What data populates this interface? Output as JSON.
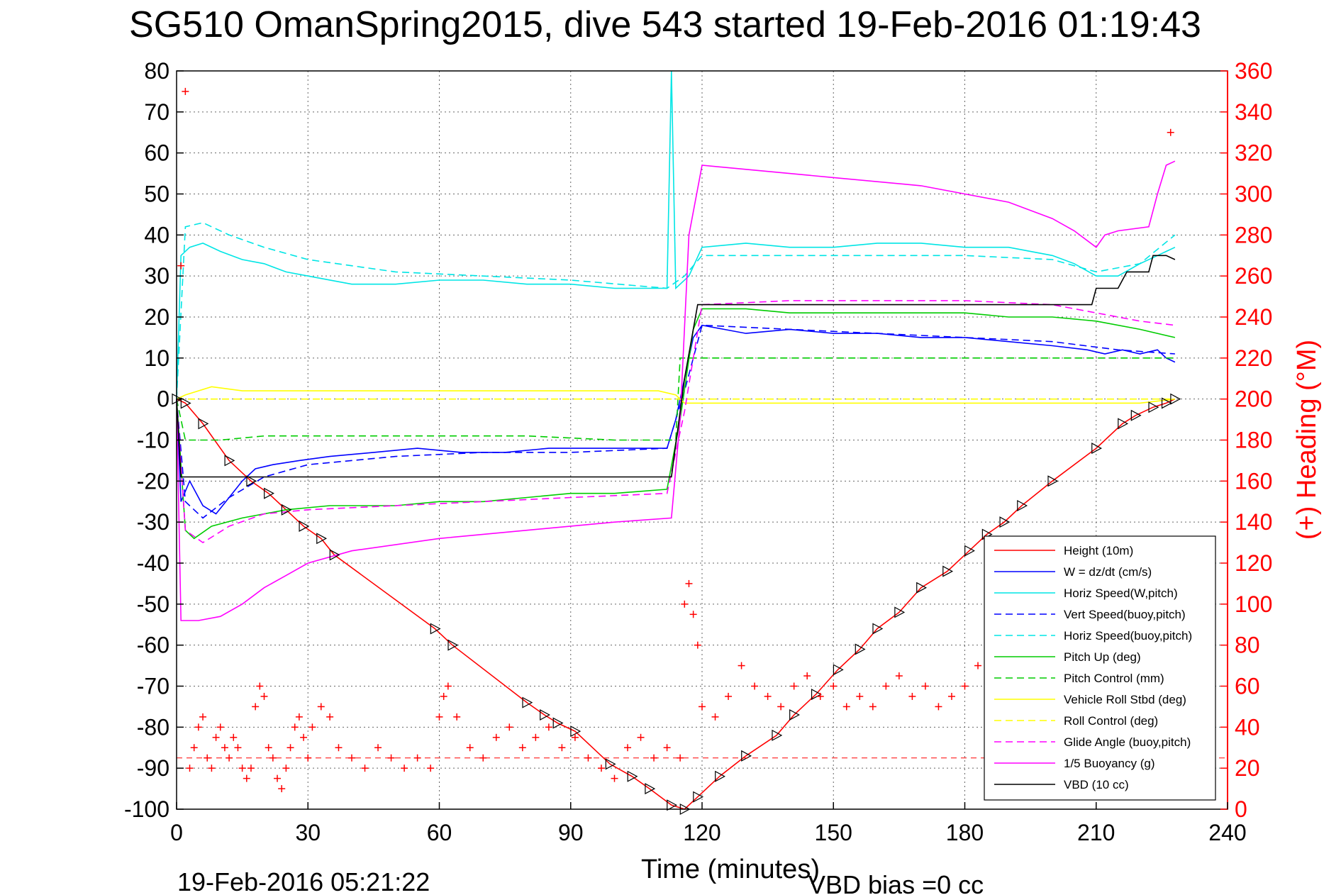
{
  "chart_data": {
    "type": "line",
    "title": "SG510 OmanSpring2015, dive 543 started 19-Feb-2016 01:19:43",
    "xlabel": "Time (minutes)",
    "ylabel_right": "(+) Heading (°M)",
    "xlim": [
      0,
      240
    ],
    "ylim": [
      -100,
      80
    ],
    "ylim_right": [
      0,
      360
    ],
    "xticks": [
      0,
      30,
      60,
      90,
      120,
      150,
      180,
      210,
      240
    ],
    "yticks": [
      -100,
      -90,
      -80,
      -70,
      -60,
      -50,
      -40,
      -30,
      -20,
      -10,
      0,
      10,
      20,
      30,
      40,
      50,
      60,
      70,
      80
    ],
    "yticks_right": [
      0,
      20,
      40,
      60,
      80,
      100,
      120,
      140,
      160,
      180,
      200,
      220,
      240,
      260,
      280,
      300,
      320,
      340,
      360
    ],
    "grid": true,
    "legend_position": "lower-right",
    "footer_left": "19-Feb-2016 05:21:22",
    "footer_right": "VBD bias =0 cc",
    "series": [
      {
        "name": "Height (10m)",
        "color": "#ff0000",
        "style": "solid",
        "x": [
          0,
          2,
          6,
          12,
          17,
          21,
          25,
          29,
          33,
          36,
          59,
          63,
          80,
          84,
          87,
          91,
          99,
          104,
          108,
          113,
          116,
          119,
          124,
          130,
          137,
          141,
          146,
          151,
          156,
          160,
          165,
          170,
          176,
          181,
          185,
          189,
          193,
          200,
          210,
          216,
          219,
          223,
          226,
          228
        ],
        "y": [
          0,
          -1,
          -6,
          -15,
          -20,
          -23,
          -27,
          -31,
          -34,
          -38,
          -56,
          -60,
          -74,
          -77,
          -79,
          -81,
          -89,
          -92,
          -95,
          -99,
          -100,
          -97,
          -92,
          -87,
          -82,
          -77,
          -72,
          -66,
          -61,
          -56,
          -52,
          -46,
          -42,
          -37,
          -33,
          -30,
          -26,
          -20,
          -12,
          -6,
          -4,
          -2,
          -1,
          0
        ]
      },
      {
        "name": "W = dz/dt (cm/s)",
        "color": "#0000ff",
        "style": "solid",
        "x": [
          0,
          1,
          3,
          6,
          9,
          12,
          15,
          18,
          22,
          28,
          35,
          45,
          55,
          65,
          75,
          85,
          95,
          105,
          112,
          114,
          116,
          118,
          120,
          125,
          130,
          140,
          150,
          160,
          170,
          180,
          190,
          200,
          208,
          212,
          216,
          220,
          224,
          226,
          228
        ],
        "y": [
          0,
          -25,
          -20,
          -26,
          -28,
          -24,
          -20,
          -17,
          -16,
          -15,
          -14,
          -13,
          -12,
          -13,
          -13,
          -12,
          -12,
          -12,
          -12,
          -5,
          5,
          15,
          18,
          17,
          16,
          17,
          16,
          16,
          15,
          15,
          14,
          13,
          12,
          11,
          12,
          11,
          12,
          10,
          9
        ]
      },
      {
        "name": "Horiz Speed(W,pitch)",
        "color": "#00e5e5",
        "style": "solid",
        "x": [
          0,
          1,
          3,
          6,
          10,
          15,
          20,
          25,
          30,
          40,
          50,
          60,
          70,
          80,
          90,
          100,
          112,
          113,
          114,
          115,
          117,
          120,
          130,
          140,
          150,
          160,
          170,
          180,
          190,
          200,
          205,
          210,
          215,
          220,
          224,
          226,
          228
        ],
        "y": [
          0,
          35,
          37,
          38,
          36,
          34,
          33,
          31,
          30,
          28,
          28,
          29,
          29,
          28,
          28,
          27,
          27,
          80,
          27,
          28,
          30,
          37,
          38,
          37,
          37,
          38,
          38,
          37,
          37,
          35,
          33,
          30,
          30,
          33,
          35,
          36,
          37
        ]
      },
      {
        "name": "Vert Speed(buoy,pitch)",
        "color": "#0000ff",
        "style": "dashed",
        "x": [
          0,
          2,
          6,
          12,
          20,
          30,
          50,
          70,
          90,
          112,
          116,
          120,
          140,
          160,
          180,
          200,
          215,
          228
        ],
        "y": [
          0,
          -25,
          -29,
          -24,
          -19,
          -16,
          -14,
          -13,
          -13,
          -12,
          2,
          18,
          17,
          16,
          15,
          14,
          12,
          11
        ]
      },
      {
        "name": "Horiz Speed(buoy,pitch)",
        "color": "#00e5e5",
        "style": "dashed",
        "x": [
          0,
          2,
          6,
          12,
          20,
          30,
          50,
          70,
          90,
          112,
          116,
          120,
          140,
          160,
          180,
          200,
          210,
          220,
          228
        ],
        "y": [
          0,
          42,
          43,
          40,
          37,
          34,
          31,
          30,
          29,
          27,
          30,
          35,
          35,
          35,
          35,
          34,
          31,
          33,
          40
        ]
      },
      {
        "name": "Pitch Up (deg)",
        "color": "#00cc00",
        "style": "solid",
        "x": [
          0,
          2,
          4,
          8,
          15,
          25,
          35,
          50,
          60,
          70,
          80,
          90,
          100,
          112,
          115,
          118,
          120,
          130,
          140,
          150,
          160,
          170,
          180,
          190,
          200,
          210,
          220,
          228
        ],
        "y": [
          0,
          -32,
          -34,
          -31,
          -29,
          -27,
          -26,
          -26,
          -25,
          -25,
          -24,
          -23,
          -23,
          -22,
          -5,
          17,
          22,
          22,
          21,
          21,
          21,
          21,
          21,
          20,
          20,
          19,
          17,
          15
        ]
      },
      {
        "name": "Pitch Control (mm)",
        "color": "#00cc00",
        "style": "dashed",
        "x": [
          0,
          2,
          10,
          20,
          40,
          60,
          80,
          100,
          114,
          115,
          120,
          140,
          160,
          180,
          200,
          215,
          228
        ],
        "y": [
          0,
          -10,
          -10,
          -9,
          -9,
          -9,
          -9,
          -10,
          -10,
          10,
          10,
          10,
          10,
          10,
          10,
          10,
          10
        ]
      },
      {
        "name": "Vehicle Roll Stbd (deg)",
        "color": "#ffff00",
        "style": "solid",
        "x": [
          0,
          2,
          8,
          15,
          30,
          50,
          70,
          90,
          110,
          114,
          116,
          120,
          140,
          160,
          180,
          200,
          220,
          228
        ],
        "y": [
          0,
          1,
          3,
          2,
          2,
          2,
          2,
          2,
          2,
          1,
          -1,
          -1,
          -1,
          -1,
          -1,
          -1,
          -1,
          0
        ]
      },
      {
        "name": "Roll Control (deg)",
        "color": "#ffff00",
        "style": "dashed",
        "x": [
          0,
          20,
          60,
          114,
          115,
          160,
          228
        ],
        "y": [
          0,
          0,
          0,
          0,
          0,
          0,
          0
        ]
      },
      {
        "name": "Glide Angle (buoy,pitch)",
        "color": "#ff00ff",
        "style": "dashed",
        "x": [
          0,
          2,
          6,
          12,
          20,
          30,
          50,
          70,
          90,
          112,
          116,
          120,
          140,
          160,
          180,
          200,
          210,
          220,
          228
        ],
        "y": [
          0,
          -32,
          -35,
          -31,
          -28,
          -27,
          -26,
          -25,
          -24,
          -23,
          -3,
          23,
          24,
          24,
          24,
          23,
          21,
          19,
          18
        ]
      },
      {
        "name": "1/5 Buoyancy (g)",
        "color": "#ff00ff",
        "style": "solid",
        "x": [
          0,
          1,
          3,
          5,
          10,
          15,
          20,
          25,
          30,
          40,
          60,
          80,
          100,
          113,
          115,
          117,
          120,
          130,
          150,
          170,
          190,
          200,
          205,
          210,
          212,
          215,
          222,
          224,
          226,
          228
        ],
        "y": [
          0,
          -54,
          -54,
          -54,
          -53,
          -50,
          -46,
          -43,
          -40,
          -37,
          -34,
          -32,
          -30,
          -29,
          -5,
          40,
          57,
          56,
          54,
          52,
          48,
          44,
          41,
          37,
          40,
          41,
          42,
          50,
          57,
          58
        ]
      },
      {
        "name": "VBD (10 cc)",
        "color": "#000000",
        "style": "solid",
        "x": [
          0,
          1,
          3,
          113,
          116,
          119,
          120,
          160,
          200,
          209,
          210,
          215,
          217,
          222,
          223,
          226,
          228
        ],
        "y": [
          0,
          -19,
          -19,
          -19,
          5,
          23,
          23,
          23,
          23,
          23,
          27,
          27,
          31,
          31,
          35,
          35,
          34
        ]
      }
    ],
    "heading_scatter": {
      "name": "(+) Heading",
      "color": "#ff0000",
      "marker": "+",
      "x": [
        1,
        2,
        3,
        4,
        5,
        6,
        7,
        8,
        9,
        10,
        11,
        12,
        13,
        14,
        15,
        16,
        17,
        18,
        19,
        20,
        21,
        22,
        23,
        24,
        25,
        26,
        27,
        28,
        29,
        30,
        31,
        33,
        35,
        37,
        40,
        43,
        46,
        49,
        52,
        55,
        58,
        60,
        61,
        62,
        64,
        67,
        70,
        73,
        76,
        79,
        82,
        85,
        88,
        91,
        94,
        97,
        100,
        103,
        106,
        109,
        112,
        115,
        116,
        117,
        118,
        119,
        120,
        123,
        126,
        129,
        132,
        135,
        138,
        141,
        144,
        147,
        150,
        153,
        156,
        159,
        162,
        165,
        168,
        171,
        174,
        177,
        180,
        183,
        186,
        189,
        192,
        195,
        198,
        201,
        204,
        207,
        210,
        213,
        216,
        219,
        222,
        225,
        227
      ],
      "y": [
        265,
        350,
        20,
        30,
        40,
        45,
        25,
        20,
        35,
        40,
        30,
        25,
        35,
        30,
        20,
        15,
        20,
        50,
        60,
        55,
        30,
        25,
        15,
        10,
        20,
        30,
        40,
        45,
        35,
        25,
        40,
        50,
        45,
        30,
        25,
        20,
        30,
        25,
        20,
        25,
        20,
        45,
        55,
        60,
        45,
        30,
        25,
        35,
        40,
        30,
        35,
        40,
        30,
        35,
        25,
        20,
        15,
        30,
        35,
        25,
        30,
        25,
        100,
        110,
        95,
        80,
        50,
        45,
        55,
        70,
        60,
        55,
        50,
        60,
        65,
        55,
        60,
        50,
        55,
        50,
        60,
        65,
        55,
        60,
        50,
        55,
        60,
        70,
        55,
        60,
        65,
        70,
        55,
        60,
        50,
        55,
        60,
        65,
        55,
        60,
        45,
        50,
        330
      ]
    }
  }
}
